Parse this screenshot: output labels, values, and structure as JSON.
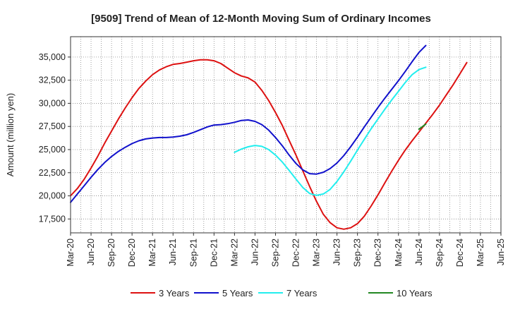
{
  "chart_data": {
    "type": "line",
    "title": "[9509]  Trend of Mean of 12-Month Moving Sum of Ordinary Incomes",
    "xlabel": "",
    "ylabel": "Amount (million yen)",
    "ylim": [
      16000,
      37200
    ],
    "yticks": [
      17500,
      20000,
      22500,
      25000,
      27500,
      30000,
      32500,
      35000
    ],
    "ytick_labels": [
      "17,500",
      "20,000",
      "22,500",
      "25,000",
      "27,500",
      "30,000",
      "32,500",
      "35,000"
    ],
    "xticks": [
      "Mar-20",
      "Jun-20",
      "Sep-20",
      "Dec-20",
      "Mar-21",
      "Jun-21",
      "Sep-21",
      "Dec-21",
      "Mar-22",
      "Jun-22",
      "Sep-22",
      "Dec-22",
      "Mar-23",
      "Jun-23",
      "Sep-23",
      "Dec-23",
      "Mar-24",
      "Jun-24",
      "Sep-24",
      "Dec-24",
      "Mar-25",
      "Jun-25"
    ],
    "x_unit": "months since Mar-20",
    "grid": true,
    "legend_position": "bottom",
    "series": [
      {
        "name": "3 Years",
        "color": "#dd1111",
        "x": [
          0,
          1,
          2,
          3,
          4,
          5,
          6,
          7,
          8,
          9,
          10,
          11,
          12,
          13,
          14,
          15,
          16,
          17,
          18,
          19,
          20,
          21,
          22,
          23,
          24,
          25,
          26,
          27,
          28,
          29,
          30,
          31,
          32,
          33,
          34,
          35,
          36,
          37,
          38,
          39,
          40,
          41,
          42,
          43,
          44,
          45,
          46,
          47,
          48,
          49,
          50,
          51,
          52,
          53,
          54,
          55,
          56,
          57,
          58,
          59,
          60
        ],
        "values": [
          20000,
          20800,
          21800,
          23000,
          24300,
          25700,
          27000,
          28300,
          29500,
          30600,
          31600,
          32400,
          33100,
          33600,
          33950,
          34200,
          34300,
          34450,
          34600,
          34700,
          34700,
          34600,
          34300,
          33800,
          33300,
          32950,
          32750,
          32300,
          31400,
          30300,
          29000,
          27600,
          26000,
          24400,
          22700,
          21000,
          19400,
          18000,
          17100,
          16550,
          16400,
          16550,
          17000,
          17800,
          18900,
          20100,
          21400,
          22650,
          23850,
          24950,
          25950,
          26900,
          27850,
          28800,
          29800,
          30900,
          32000,
          33200,
          34400,
          null,
          null
        ]
      },
      {
        "name": "5 Years",
        "color": "#1111cc",
        "x": [
          0,
          1,
          2,
          3,
          4,
          5,
          6,
          7,
          8,
          9,
          10,
          11,
          12,
          13,
          14,
          15,
          16,
          17,
          18,
          19,
          20,
          21,
          22,
          23,
          24,
          25,
          26,
          27,
          28,
          29,
          30,
          31,
          32,
          33,
          34,
          35,
          36,
          37,
          38,
          39,
          40,
          41,
          42,
          43,
          44,
          45,
          46,
          47,
          48,
          49,
          50,
          51,
          52,
          53,
          54,
          55,
          56,
          57,
          58,
          59,
          60
        ],
        "values": [
          19300,
          20200,
          21100,
          22000,
          22850,
          23600,
          24250,
          24800,
          25250,
          25650,
          25950,
          26150,
          26250,
          26300,
          26300,
          26350,
          26450,
          26600,
          26850,
          27150,
          27450,
          27650,
          27700,
          27800,
          27950,
          28150,
          28200,
          28050,
          27700,
          27100,
          26300,
          25400,
          24400,
          23500,
          22800,
          22400,
          22350,
          22550,
          22950,
          23550,
          24350,
          25300,
          26350,
          27450,
          28500,
          29550,
          30550,
          31500,
          32450,
          33450,
          34500,
          35500,
          36250,
          null,
          null,
          null,
          null,
          null,
          null,
          null,
          null
        ]
      },
      {
        "name": "7 Years",
        "color": "#22eeee",
        "x": [
          24,
          25,
          26,
          27,
          28,
          29,
          30,
          31,
          32,
          33,
          34,
          35,
          36,
          37,
          38,
          39,
          40,
          41,
          42,
          43,
          44,
          45,
          46,
          47,
          48,
          49,
          50,
          51,
          52
        ],
        "values": [
          24700,
          25050,
          25300,
          25450,
          25350,
          25000,
          24400,
          23650,
          22750,
          21800,
          20900,
          20250,
          20050,
          20200,
          20700,
          21550,
          22600,
          23750,
          24950,
          26100,
          27250,
          28300,
          29350,
          30350,
          31300,
          32250,
          33100,
          33650,
          33900
        ]
      },
      {
        "name": "10 Years",
        "color": "#228822",
        "x": [
          51,
          52
        ],
        "values": [
          27200,
          27750
        ]
      }
    ]
  }
}
